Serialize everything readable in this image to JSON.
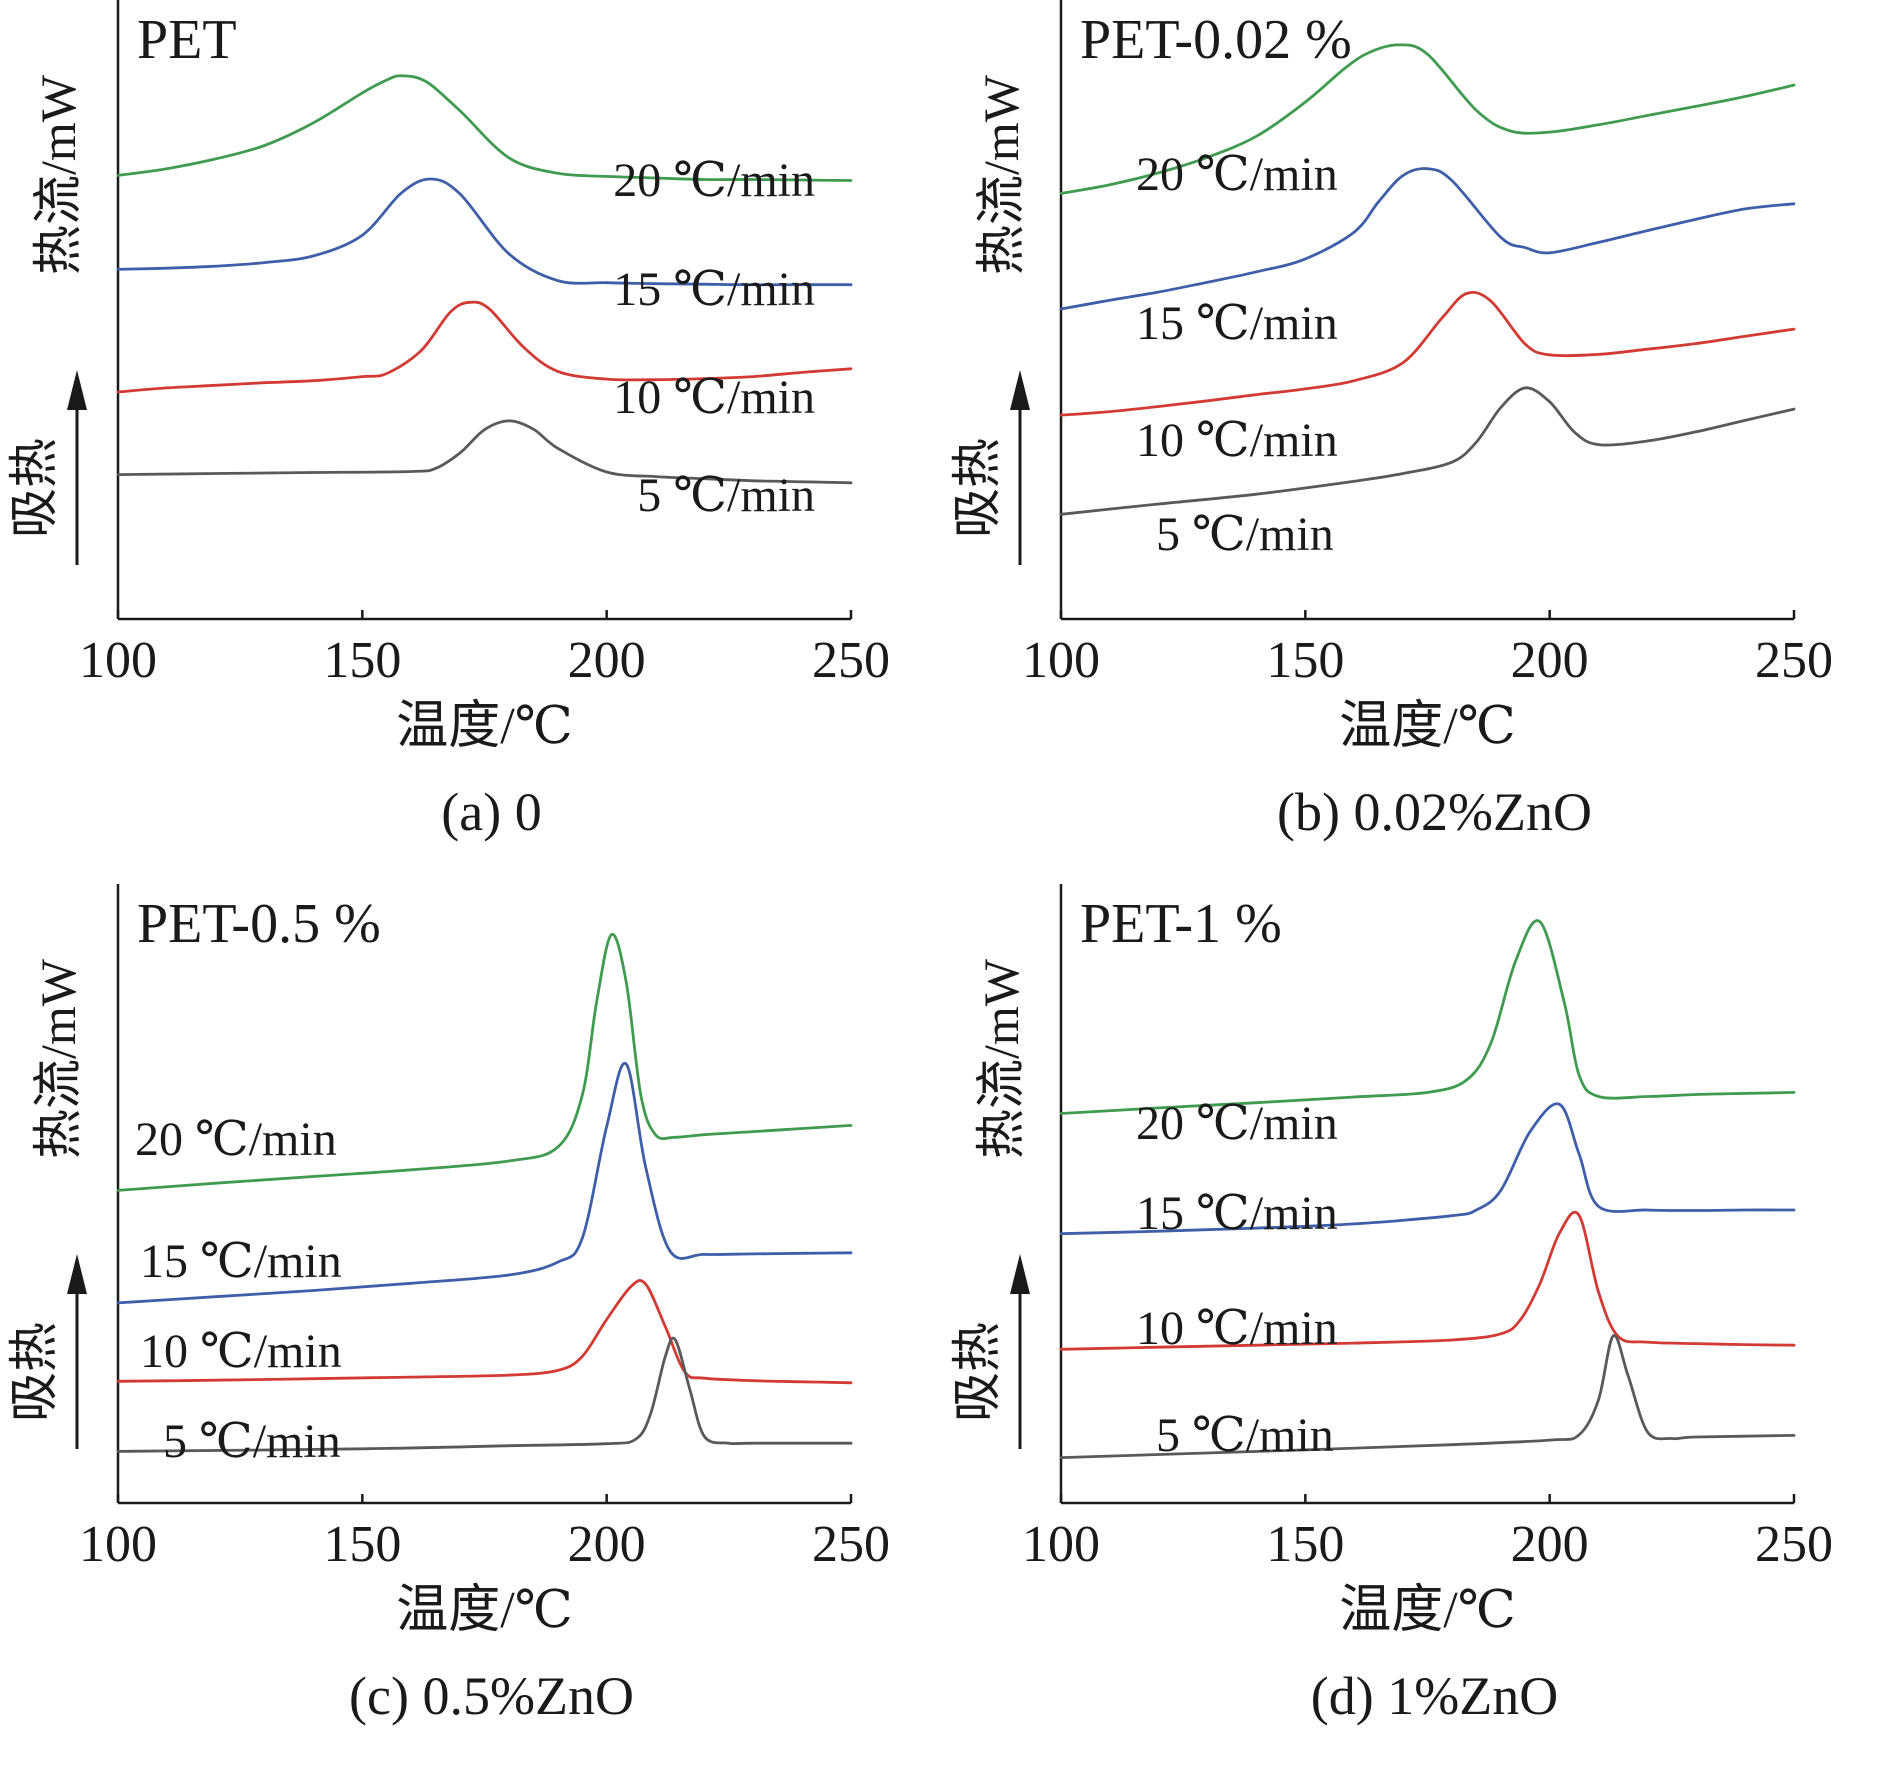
{
  "colors": {
    "5": "#595959",
    "10": "#d23b34",
    "15": "#3f5ea9",
    "20": "#3f9b4f",
    "axis": "#1a1a1a"
  },
  "chart_data": [
    {
      "type": "line",
      "panel_title": "PET",
      "caption": "(a) 0",
      "xlabel": "温度/℃",
      "ylabel": "热流/mW",
      "endo_label": "吸热",
      "xlim": [
        100,
        250
      ],
      "xticks": [
        "100",
        "150",
        "200",
        "250"
      ],
      "series": [
        {
          "name": "20 ℃/min",
          "rate": 20,
          "x": [
            100,
            110,
            120,
            130,
            140,
            150,
            155,
            158,
            163,
            170,
            180,
            190,
            200,
            210,
            220,
            230,
            240,
            250
          ],
          "y": [
            66,
            67.3,
            69.2,
            71.8,
            76.2,
            82,
            84.5,
            85.3,
            84.2,
            78.5,
            69.4,
            66.4,
            65.8,
            65.5,
            65.2,
            65.2,
            65.1,
            65
          ]
        },
        {
          "name": "15 ℃/min",
          "rate": 15,
          "x": [
            100,
            110,
            120,
            130,
            140,
            150,
            158,
            164,
            170,
            180,
            190,
            200,
            210,
            220,
            230,
            240,
            250
          ],
          "y": [
            47.8,
            48,
            48.4,
            49.1,
            50.4,
            54.4,
            62.6,
            65.3,
            62.4,
            50.8,
            45.6,
            45.2,
            45,
            44.9,
            44.8,
            44.8,
            44.8
          ]
        },
        {
          "name": "10 ℃/min",
          "rate": 10,
          "x": [
            100,
            110,
            120,
            130,
            140,
            150,
            155,
            162,
            168,
            172,
            176,
            183,
            190,
            200,
            210,
            220,
            230,
            240,
            250
          ],
          "y": [
            24,
            24.8,
            25.3,
            25.8,
            26.2,
            27,
            27.6,
            32,
            39.5,
            41.4,
            40.1,
            32.7,
            28,
            26.5,
            26.4,
            26.6,
            27,
            27.8,
            28.5
          ]
        },
        {
          "name": "5 ℃/min",
          "rate": 5,
          "x": [
            100,
            120,
            140,
            160,
            165,
            170,
            175,
            180,
            185,
            190,
            200,
            210,
            220,
            230,
            240,
            250
          ],
          "y": [
            8,
            8.2,
            8.4,
            8.6,
            9.2,
            12.2,
            16.7,
            18.4,
            16.8,
            13.1,
            8.5,
            7.6,
            7.2,
            6.8,
            6.6,
            6.4
          ]
        }
      ]
    },
    {
      "type": "line",
      "panel_title": "PET-0.02 %",
      "caption": "(b) 0.02%ZnO",
      "xlabel": "温度/℃",
      "ylabel": "热流/mW",
      "endo_label": "吸热",
      "xlim": [
        100,
        250
      ],
      "xticks": [
        "100",
        "150",
        "200",
        "250"
      ],
      "series": [
        {
          "name": "20 ℃/min",
          "rate": 20,
          "x": [
            100,
            110,
            120,
            130,
            140,
            150,
            158,
            163,
            169,
            175,
            185,
            192,
            200,
            210,
            220,
            230,
            240,
            250
          ],
          "y": [
            62.5,
            64.2,
            66.5,
            69.5,
            73.6,
            80.2,
            86.7,
            89.8,
            91.3,
            89.5,
            78.6,
            74.6,
            74.4,
            75.8,
            77.6,
            79.4,
            81.3,
            83.5
          ]
        },
        {
          "name": "15 ℃/min",
          "rate": 15,
          "x": [
            100,
            110,
            120,
            130,
            140,
            150,
            160,
            165,
            170,
            175,
            180,
            190,
            195,
            200,
            210,
            220,
            230,
            240,
            250
          ],
          "y": [
            40.1,
            41.8,
            43.4,
            45.3,
            47.3,
            49.8,
            55,
            60.9,
            66,
            67.3,
            65,
            54,
            52,
            51,
            53,
            55.3,
            57.5,
            59.5,
            60.5
          ]
        },
        {
          "name": "10 ℃/min",
          "rate": 10,
          "x": [
            100,
            110,
            120,
            130,
            140,
            150,
            160,
            170,
            178,
            183,
            188,
            195,
            200,
            210,
            220,
            230,
            240,
            250
          ],
          "y": [
            19.5,
            20.2,
            21.2,
            22.3,
            23.5,
            24.6,
            26.2,
            29.7,
            38.4,
            43.1,
            41.6,
            33.3,
            31.2,
            31.3,
            32.3,
            33.4,
            34.8,
            36.2
          ]
        },
        {
          "name": "5 ℃/min",
          "rate": 5,
          "x": [
            100,
            120,
            140,
            160,
            170,
            180,
            185,
            190,
            195,
            200,
            205,
            210,
            220,
            230,
            240,
            250
          ],
          "y": [
            0.3,
            2.3,
            4.2,
            6.7,
            8.2,
            10.4,
            14.3,
            21,
            24.8,
            22.1,
            16.3,
            13.8,
            14.5,
            16.3,
            18.5,
            20.7
          ]
        }
      ]
    },
    {
      "type": "line",
      "panel_title": "PET-0.5 %",
      "caption": "(c) 0.5%ZnO",
      "xlabel": "温度/℃",
      "ylabel": "热流/mW",
      "endo_label": "吸热",
      "xlim": [
        100,
        250
      ],
      "xticks": [
        "100",
        "150",
        "200",
        "250"
      ],
      "series": [
        {
          "name": "20 ℃/min",
          "rate": 20,
          "x": [
            100,
            120,
            140,
            160,
            180,
            190,
            195,
            198,
            201,
            204,
            207,
            210,
            214,
            220,
            230,
            240,
            250
          ],
          "y": [
            40.6,
            42,
            43.3,
            44.6,
            46.3,
            49,
            59,
            77.5,
            90.2,
            81,
            59,
            51.4,
            50.9,
            51.4,
            52,
            52.6,
            53.2
          ]
        },
        {
          "name": "15 ℃/min",
          "rate": 15,
          "x": [
            100,
            120,
            140,
            160,
            180,
            190,
            195,
            200,
            204,
            208,
            213,
            220,
            230,
            240,
            250
          ],
          "y": [
            18.8,
            20,
            21.2,
            22.6,
            24.2,
            26.7,
            31.3,
            53,
            65.1,
            45,
            28.8,
            28.2,
            28.3,
            28.4,
            28.5
          ]
        },
        {
          "name": "10 ℃/min",
          "rate": 10,
          "x": [
            100,
            120,
            140,
            160,
            180,
            190,
            195,
            200,
            205,
            208,
            212,
            216,
            220,
            230,
            240,
            250
          ],
          "y": [
            3.6,
            3.8,
            4.1,
            4.4,
            4.8,
            5.7,
            8.4,
            15.6,
            22,
            22.4,
            14.2,
            5.4,
            4.2,
            3.7,
            3.5,
            3.3
          ]
        },
        {
          "name": "5 ℃/min",
          "rate": 5,
          "x": [
            100,
            150,
            180,
            200,
            206,
            209,
            212,
            214,
            217,
            220,
            225,
            230,
            250
          ],
          "y": [
            -10,
            -9.5,
            -8.9,
            -8.5,
            -7.6,
            -2.7,
            8.4,
            11.7,
            2.1,
            -7.1,
            -8.4,
            -8.4,
            -8.4
          ]
        }
      ]
    },
    {
      "type": "line",
      "panel_title": "PET-1 %",
      "caption": "(d) 1%ZnO",
      "xlabel": "温度/℃",
      "ylabel": "热流/mW",
      "endo_label": "吸热",
      "xlim": [
        100,
        250
      ],
      "xticks": [
        "100",
        "150",
        "200",
        "250"
      ],
      "series": [
        {
          "name": "20 ℃/min",
          "rate": 20,
          "x": [
            100,
            120,
            140,
            160,
            175,
            183,
            188,
            193,
            198,
            203,
            206,
            210,
            220,
            230,
            240,
            250
          ],
          "y": [
            55.5,
            56.6,
            57.6,
            58.7,
            59.6,
            62,
            69.2,
            85,
            92.7,
            77,
            63,
            58.8,
            58.8,
            59.2,
            59.4,
            59.6
          ]
        },
        {
          "name": "15 ℃/min",
          "rate": 15,
          "x": [
            100,
            120,
            140,
            160,
            180,
            185,
            190,
            196,
            202,
            206,
            210,
            220,
            230,
            240,
            250
          ],
          "y": [
            32.2,
            32.7,
            33.3,
            34.1,
            35.7,
            36.8,
            40.6,
            52,
            57.3,
            47.7,
            37.5,
            36.8,
            36.7,
            36.8,
            36.8
          ]
        },
        {
          "name": "10 ℃/min",
          "rate": 10,
          "x": [
            100,
            120,
            140,
            160,
            180,
            190,
            194,
            198,
            202,
            206,
            210,
            214,
            220,
            230,
            240,
            250
          ],
          "y": [
            9.8,
            10.2,
            10.6,
            11,
            11.6,
            12.8,
            15.5,
            22.5,
            32.3,
            35.8,
            20.9,
            12.3,
            11.2,
            10.9,
            10.7,
            10.6
          ]
        },
        {
          "name": "5 ℃/min",
          "rate": 5,
          "x": [
            100,
            150,
            180,
            200,
            206,
            210,
            213,
            216,
            220,
            225,
            230,
            250
          ],
          "y": [
            -11.2,
            -9.7,
            -8.7,
            -7.8,
            -6.8,
            0,
            12.4,
            4.8,
            -6.2,
            -7.5,
            -7.2,
            -6.9
          ]
        }
      ]
    }
  ]
}
